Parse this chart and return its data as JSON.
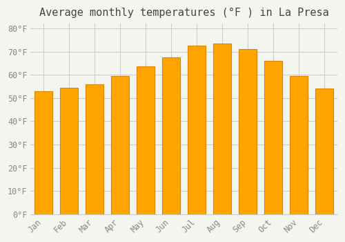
{
  "title": "Average monthly temperatures (°F ) in La Presa",
  "months": [
    "Jan",
    "Feb",
    "Mar",
    "Apr",
    "May",
    "Jun",
    "Jul",
    "Aug",
    "Sep",
    "Oct",
    "Nov",
    "Dec"
  ],
  "values": [
    53,
    54.5,
    56,
    59.5,
    63.5,
    67.5,
    72.5,
    73.5,
    71,
    66,
    59.5,
    54
  ],
  "bar_color": "#FFA500",
  "bar_edge_color": "#E08000",
  "background_color": "#f5f5f0",
  "ylim": [
    0,
    82
  ],
  "yticks": [
    0,
    10,
    20,
    30,
    40,
    50,
    60,
    70,
    80
  ],
  "ytick_labels": [
    "0°F",
    "10°F",
    "20°F",
    "30°F",
    "40°F",
    "50°F",
    "60°F",
    "70°F",
    "80°F"
  ],
  "title_fontsize": 11,
  "tick_fontsize": 8.5,
  "grid_color": "#cccccc",
  "font_family": "monospace"
}
